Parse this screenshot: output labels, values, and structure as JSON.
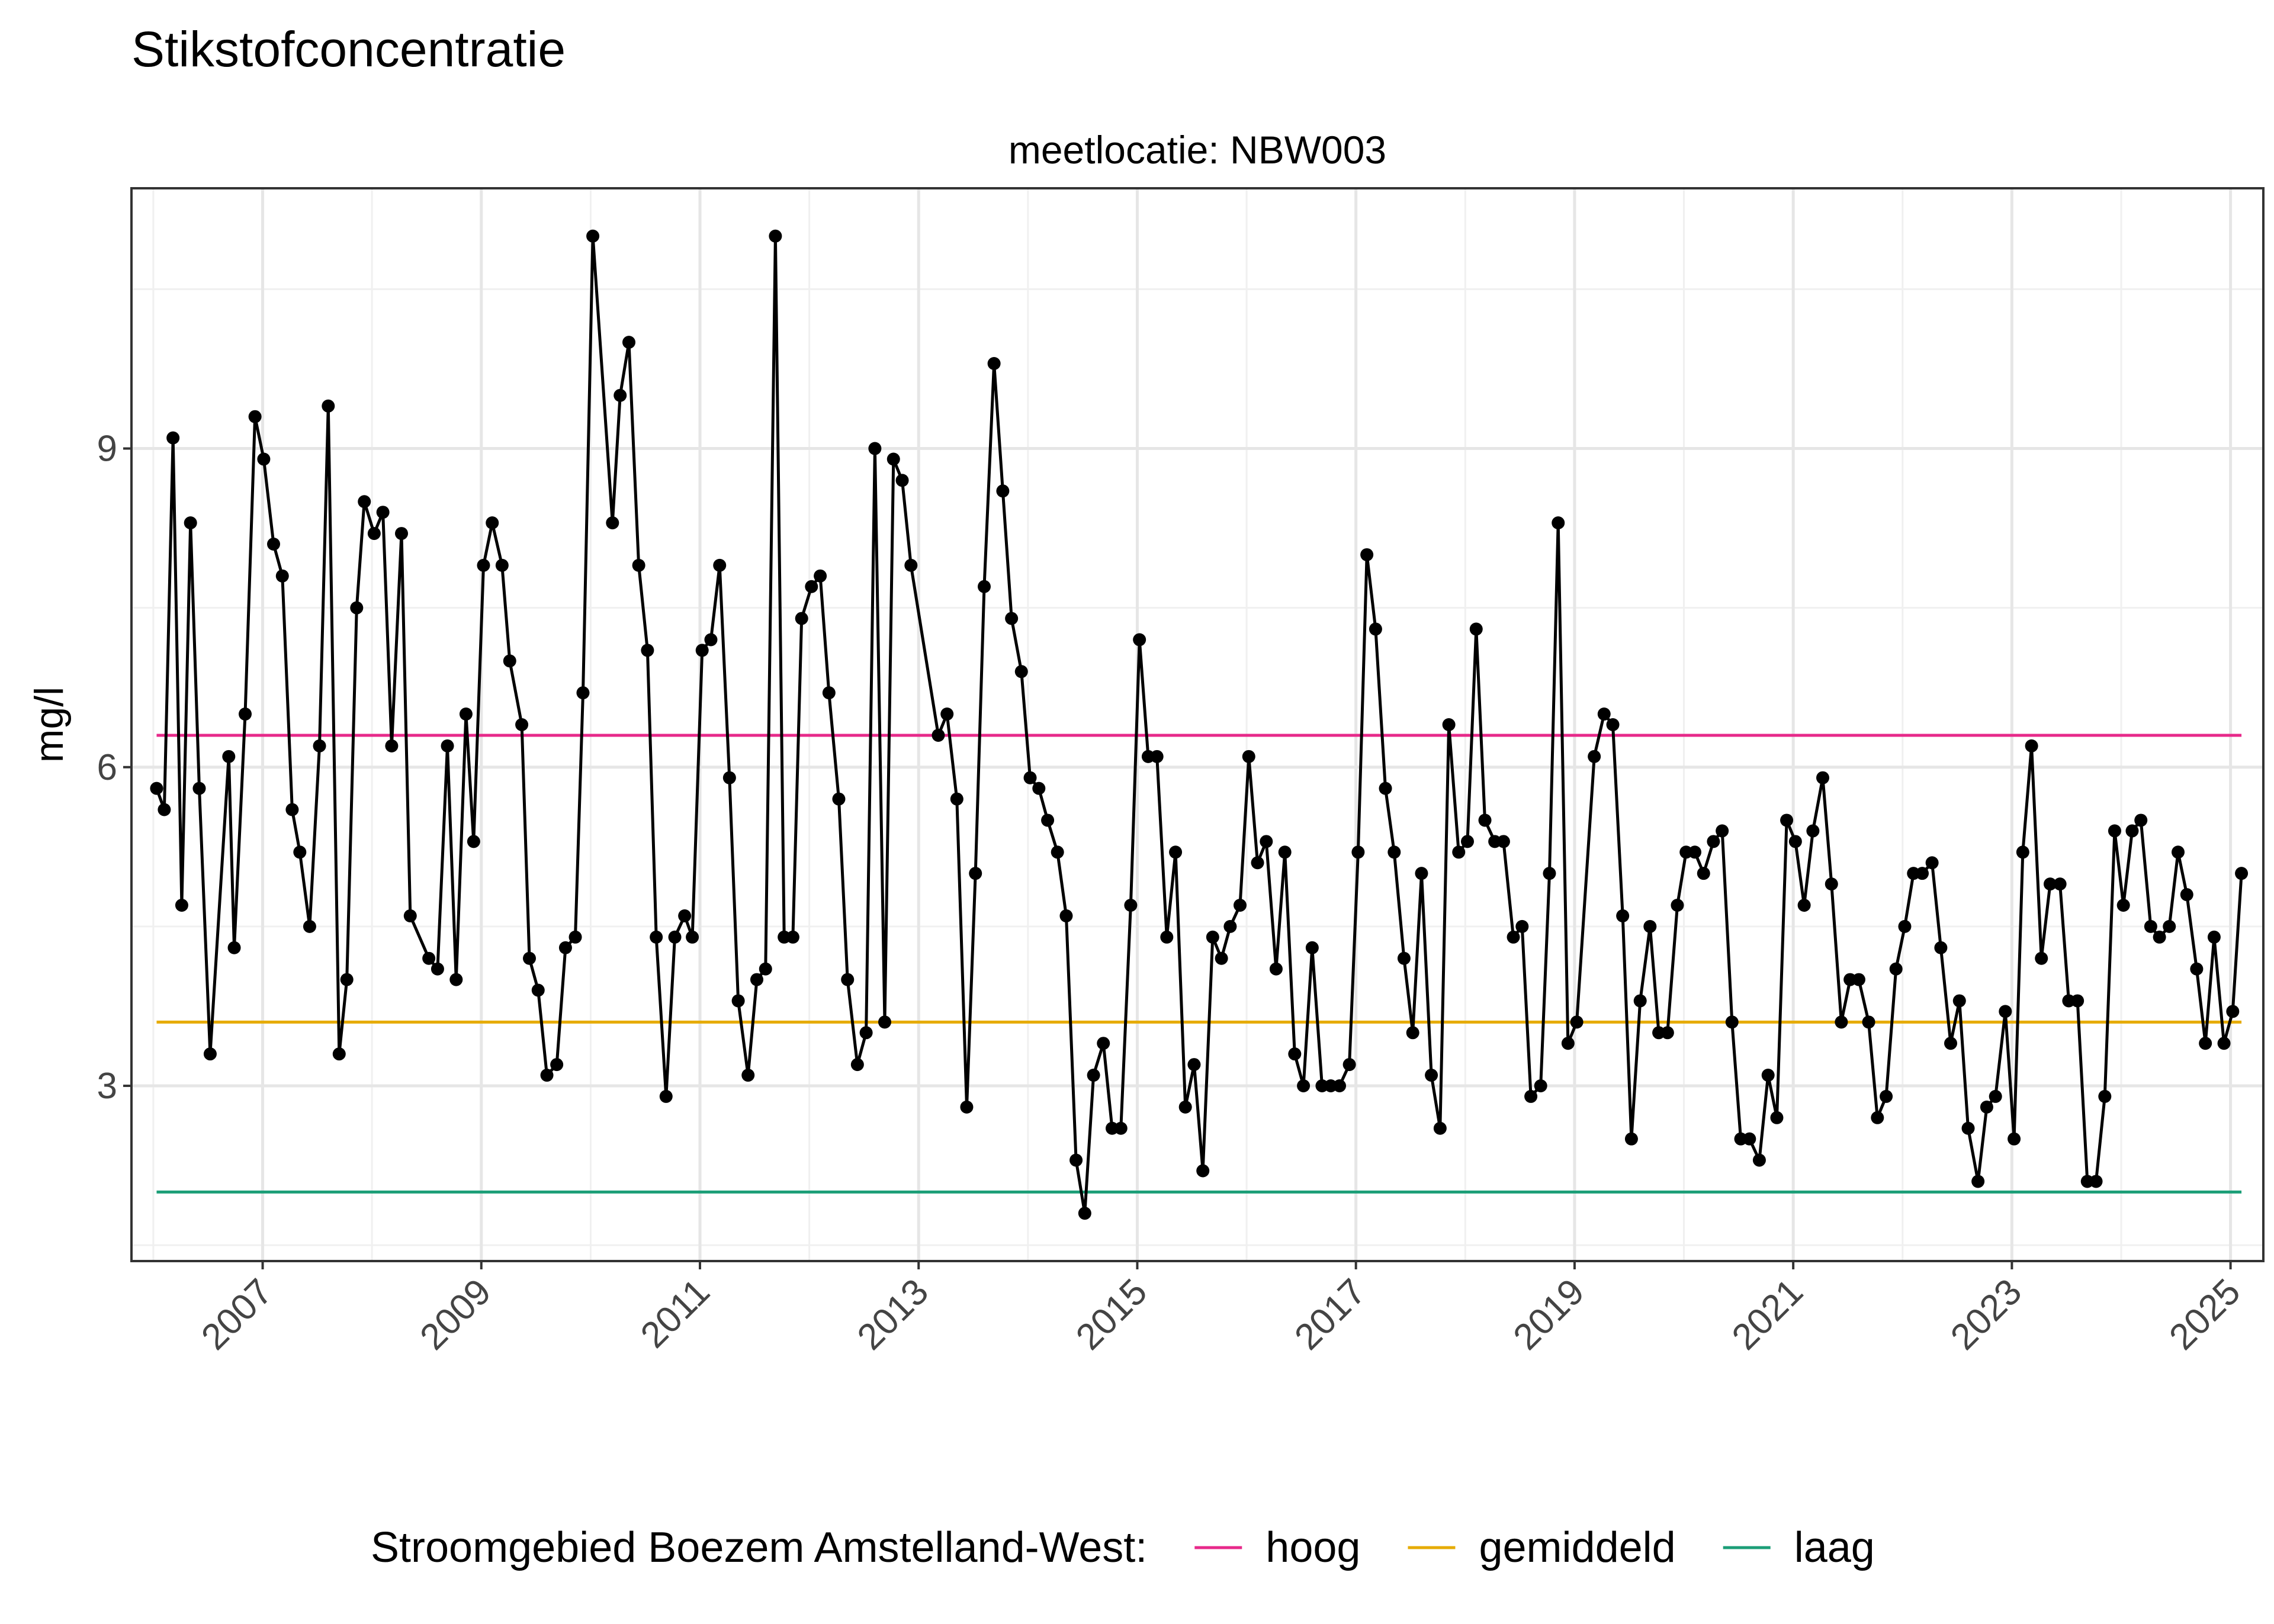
{
  "chart_data": {
    "type": "line",
    "title": "Stikstofconcentratie",
    "facet_label": "meetlocatie: NBW003",
    "ylabel": "mg/l",
    "xlabel": "",
    "x_unit": "decimal year",
    "xlim": [
      2005.8,
      2025.3
    ],
    "ylim": [
      1.35,
      11.45
    ],
    "x_ticks": [
      2007,
      2009,
      2011,
      2013,
      2015,
      2017,
      2019,
      2021,
      2023,
      2025
    ],
    "y_ticks": [
      3,
      6,
      9
    ],
    "grid": true,
    "legend_position": "bottom",
    "legend_title": "Stroomgebied Boezem Amstelland-West:",
    "reference_lines": [
      {
        "name": "hoog",
        "value": 6.3,
        "color": "#E7298A"
      },
      {
        "name": "gemiddeld",
        "value": 3.6,
        "color": "#E6AB02"
      },
      {
        "name": "laag",
        "value": 2.0,
        "color": "#1B9E77"
      }
    ],
    "series": [
      {
        "color": "#000000",
        "points": [
          [
            2006.03,
            5.8
          ],
          [
            2006.1,
            5.6
          ],
          [
            2006.18,
            9.1
          ],
          [
            2006.26,
            4.7
          ],
          [
            2006.34,
            8.3
          ],
          [
            2006.42,
            5.8
          ],
          [
            2006.52,
            3.3
          ],
          [
            2006.69,
            6.1
          ],
          [
            2006.74,
            4.3
          ],
          [
            2006.84,
            6.5
          ],
          [
            2006.93,
            9.3
          ],
          [
            2007.01,
            8.9
          ],
          [
            2007.1,
            8.1
          ],
          [
            2007.18,
            7.8
          ],
          [
            2007.27,
            5.6
          ],
          [
            2007.34,
            5.2
          ],
          [
            2007.43,
            4.5
          ],
          [
            2007.52,
            6.2
          ],
          [
            2007.6,
            9.4
          ],
          [
            2007.7,
            3.3
          ],
          [
            2007.77,
            4.0
          ],
          [
            2007.86,
            7.5
          ],
          [
            2007.93,
            8.5
          ],
          [
            2008.02,
            8.2
          ],
          [
            2008.1,
            8.4
          ],
          [
            2008.18,
            6.2
          ],
          [
            2008.27,
            8.2
          ],
          [
            2008.35,
            4.6
          ],
          [
            2008.52,
            4.2
          ],
          [
            2008.6,
            4.1
          ],
          [
            2008.69,
            6.2
          ],
          [
            2008.77,
            4.0
          ],
          [
            2008.86,
            6.5
          ],
          [
            2008.93,
            5.3
          ],
          [
            2009.02,
            7.9
          ],
          [
            2009.1,
            8.3
          ],
          [
            2009.19,
            7.9
          ],
          [
            2009.26,
            7.0
          ],
          [
            2009.37,
            6.4
          ],
          [
            2009.44,
            4.2
          ],
          [
            2009.52,
            3.9
          ],
          [
            2009.6,
            3.1
          ],
          [
            2009.69,
            3.2
          ],
          [
            2009.77,
            4.3
          ],
          [
            2009.86,
            4.4
          ],
          [
            2009.93,
            6.7
          ],
          [
            2010.02,
            11.0
          ],
          [
            2010.2,
            8.3
          ],
          [
            2010.27,
            9.5
          ],
          [
            2010.35,
            10.0
          ],
          [
            2010.44,
            7.9
          ],
          [
            2010.52,
            7.1
          ],
          [
            2010.6,
            4.4
          ],
          [
            2010.69,
            2.9
          ],
          [
            2010.77,
            4.4
          ],
          [
            2010.86,
            4.6
          ],
          [
            2010.93,
            4.4
          ],
          [
            2011.02,
            7.1
          ],
          [
            2011.1,
            7.2
          ],
          [
            2011.18,
            7.9
          ],
          [
            2011.27,
            5.9
          ],
          [
            2011.35,
            3.8
          ],
          [
            2011.44,
            3.1
          ],
          [
            2011.52,
            4.0
          ],
          [
            2011.6,
            4.1
          ],
          [
            2011.69,
            11.0
          ],
          [
            2011.77,
            4.4
          ],
          [
            2011.85,
            4.4
          ],
          [
            2011.93,
            7.4
          ],
          [
            2012.02,
            7.7
          ],
          [
            2012.1,
            7.8
          ],
          [
            2012.18,
            6.7
          ],
          [
            2012.27,
            5.7
          ],
          [
            2012.35,
            4.0
          ],
          [
            2012.44,
            3.2
          ],
          [
            2012.52,
            3.5
          ],
          [
            2012.6,
            9.0
          ],
          [
            2012.69,
            3.6
          ],
          [
            2012.77,
            8.9
          ],
          [
            2012.85,
            8.7
          ],
          [
            2012.93,
            7.9
          ],
          [
            2013.18,
            6.3
          ],
          [
            2013.26,
            6.5
          ],
          [
            2013.35,
            5.7
          ],
          [
            2013.44,
            2.8
          ],
          [
            2013.52,
            5.0
          ],
          [
            2013.6,
            7.7
          ],
          [
            2013.69,
            9.8
          ],
          [
            2013.77,
            8.6
          ],
          [
            2013.85,
            7.4
          ],
          [
            2013.94,
            6.9
          ],
          [
            2014.02,
            5.9
          ],
          [
            2014.1,
            5.8
          ],
          [
            2014.18,
            5.5
          ],
          [
            2014.27,
            5.2
          ],
          [
            2014.35,
            4.6
          ],
          [
            2014.44,
            2.3
          ],
          [
            2014.52,
            1.8
          ],
          [
            2014.6,
            3.1
          ],
          [
            2014.69,
            3.4
          ],
          [
            2014.77,
            2.6
          ],
          [
            2014.85,
            2.6
          ],
          [
            2014.94,
            4.7
          ],
          [
            2015.02,
            7.2
          ],
          [
            2015.1,
            6.1
          ],
          [
            2015.18,
            6.1
          ],
          [
            2015.27,
            4.4
          ],
          [
            2015.35,
            5.2
          ],
          [
            2015.44,
            2.8
          ],
          [
            2015.52,
            3.2
          ],
          [
            2015.6,
            2.2
          ],
          [
            2015.69,
            4.4
          ],
          [
            2015.77,
            4.2
          ],
          [
            2015.85,
            4.5
          ],
          [
            2015.94,
            4.7
          ],
          [
            2016.02,
            6.1
          ],
          [
            2016.1,
            5.1
          ],
          [
            2016.18,
            5.3
          ],
          [
            2016.27,
            4.1
          ],
          [
            2016.35,
            5.2
          ],
          [
            2016.44,
            3.3
          ],
          [
            2016.52,
            3.0
          ],
          [
            2016.6,
            4.3
          ],
          [
            2016.69,
            3.0
          ],
          [
            2016.77,
            3.0
          ],
          [
            2016.85,
            3.0
          ],
          [
            2016.94,
            3.2
          ],
          [
            2017.02,
            5.2
          ],
          [
            2017.1,
            8.0
          ],
          [
            2017.18,
            7.3
          ],
          [
            2017.27,
            5.8
          ],
          [
            2017.35,
            5.2
          ],
          [
            2017.44,
            4.2
          ],
          [
            2017.52,
            3.5
          ],
          [
            2017.6,
            5.0
          ],
          [
            2017.69,
            3.1
          ],
          [
            2017.77,
            2.6
          ],
          [
            2017.85,
            6.4
          ],
          [
            2017.94,
            5.2
          ],
          [
            2018.02,
            5.3
          ],
          [
            2018.1,
            7.3
          ],
          [
            2018.18,
            5.5
          ],
          [
            2018.27,
            5.3
          ],
          [
            2018.35,
            5.3
          ],
          [
            2018.44,
            4.4
          ],
          [
            2018.52,
            4.5
          ],
          [
            2018.6,
            2.9
          ],
          [
            2018.69,
            3.0
          ],
          [
            2018.77,
            5.0
          ],
          [
            2018.85,
            8.3
          ],
          [
            2018.94,
            3.4
          ],
          [
            2019.02,
            3.6
          ],
          [
            2019.18,
            6.1
          ],
          [
            2019.27,
            6.5
          ],
          [
            2019.35,
            6.4
          ],
          [
            2019.44,
            4.6
          ],
          [
            2019.52,
            2.5
          ],
          [
            2019.6,
            3.8
          ],
          [
            2019.69,
            4.5
          ],
          [
            2019.77,
            3.5
          ],
          [
            2019.85,
            3.5
          ],
          [
            2019.94,
            4.7
          ],
          [
            2020.02,
            5.2
          ],
          [
            2020.1,
            5.2
          ],
          [
            2020.18,
            5.0
          ],
          [
            2020.27,
            5.3
          ],
          [
            2020.35,
            5.4
          ],
          [
            2020.44,
            3.6
          ],
          [
            2020.52,
            2.5
          ],
          [
            2020.6,
            2.5
          ],
          [
            2020.69,
            2.3
          ],
          [
            2020.77,
            3.1
          ],
          [
            2020.85,
            2.7
          ],
          [
            2020.94,
            5.5
          ],
          [
            2021.02,
            5.3
          ],
          [
            2021.1,
            4.7
          ],
          [
            2021.18,
            5.4
          ],
          [
            2021.27,
            5.9
          ],
          [
            2021.35,
            4.9
          ],
          [
            2021.44,
            3.6
          ],
          [
            2021.52,
            4.0
          ],
          [
            2021.6,
            4.0
          ],
          [
            2021.69,
            3.6
          ],
          [
            2021.77,
            2.7
          ],
          [
            2021.85,
            2.9
          ],
          [
            2021.94,
            4.1
          ],
          [
            2022.02,
            4.5
          ],
          [
            2022.1,
            5.0
          ],
          [
            2022.18,
            5.0
          ],
          [
            2022.27,
            5.1
          ],
          [
            2022.35,
            4.3
          ],
          [
            2022.44,
            3.4
          ],
          [
            2022.52,
            3.8
          ],
          [
            2022.6,
            2.6
          ],
          [
            2022.69,
            2.1
          ],
          [
            2022.77,
            2.8
          ],
          [
            2022.85,
            2.9
          ],
          [
            2022.94,
            3.7
          ],
          [
            2023.02,
            2.5
          ],
          [
            2023.1,
            5.2
          ],
          [
            2023.18,
            6.2
          ],
          [
            2023.27,
            4.2
          ],
          [
            2023.35,
            4.9
          ],
          [
            2023.44,
            4.9
          ],
          [
            2023.52,
            3.8
          ],
          [
            2023.6,
            3.8
          ],
          [
            2023.69,
            2.1
          ],
          [
            2023.77,
            2.1
          ],
          [
            2023.85,
            2.9
          ],
          [
            2023.94,
            5.4
          ],
          [
            2024.02,
            4.7
          ],
          [
            2024.1,
            5.4
          ],
          [
            2024.18,
            5.5
          ],
          [
            2024.27,
            4.5
          ],
          [
            2024.35,
            4.4
          ],
          [
            2024.44,
            4.5
          ],
          [
            2024.52,
            5.2
          ],
          [
            2024.6,
            4.8
          ],
          [
            2024.69,
            4.1
          ],
          [
            2024.77,
            3.4
          ],
          [
            2024.85,
            4.4
          ],
          [
            2024.94,
            3.4
          ],
          [
            2025.02,
            3.7
          ],
          [
            2025.1,
            5.0
          ]
        ]
      }
    ]
  }
}
